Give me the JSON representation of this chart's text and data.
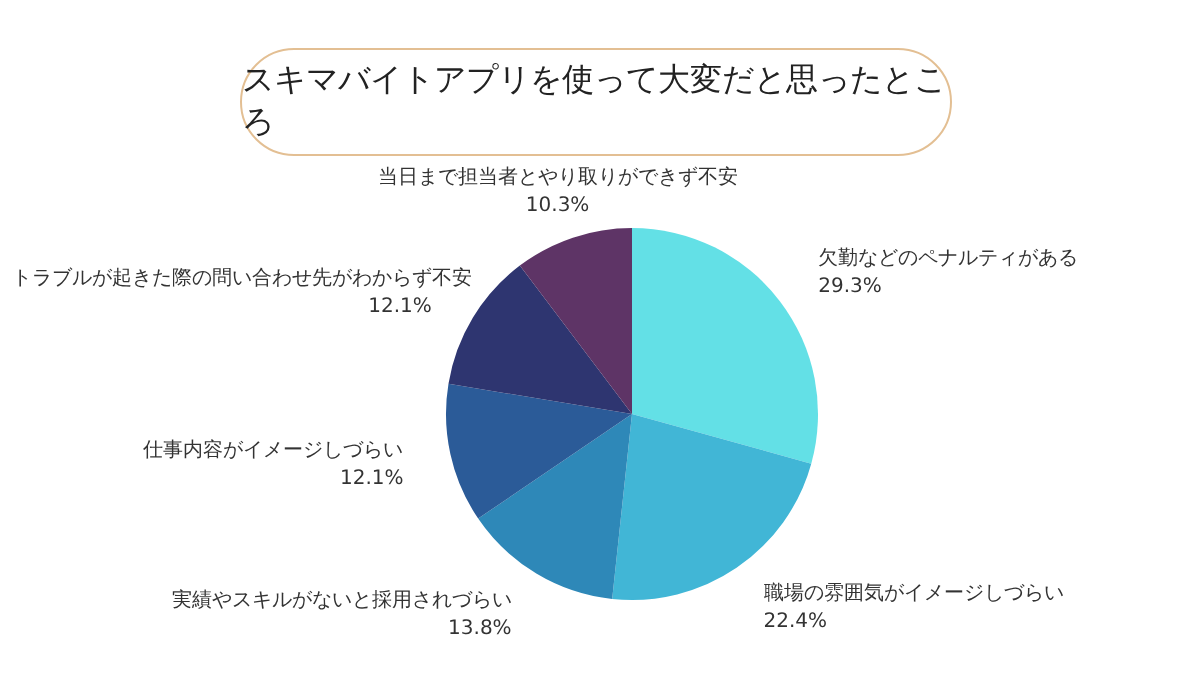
{
  "chart_data": {
    "type": "pie",
    "title": "スキマバイトアプリを使って大変だと思ったところ",
    "categories": [
      "欠勤などのペナルティがある",
      "職場の雰囲気がイメージしづらい",
      "実績やスキルがないと採用されづらい",
      "仕事内容がイメージしづらい",
      "トラブルが起きた際の問い合わせ先がわからず不安",
      "当日まで担当者とやり取りができず不安"
    ],
    "values": [
      29.3,
      22.4,
      13.8,
      12.1,
      12.1,
      10.3
    ],
    "value_labels": [
      "29.3%",
      "22.4%",
      "13.8%",
      "12.1%",
      "12.1%",
      "10.3%"
    ],
    "colors": [
      "#63e0e6",
      "#41b6d6",
      "#2e88b8",
      "#2b5b98",
      "#2e3570",
      "#5e3466"
    ],
    "legend": false
  }
}
